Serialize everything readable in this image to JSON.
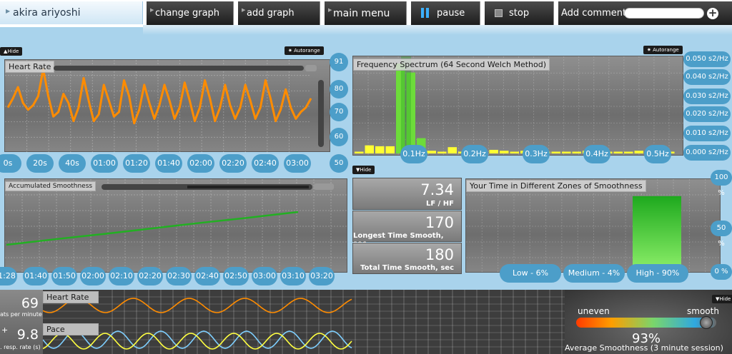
{
  "user": {
    "name": "akira ariyoshi"
  },
  "toolbar": {
    "change_graph": "change graph",
    "add_graph": "add graph",
    "main_menu": "main menu",
    "pause": "pause",
    "stop": "stop",
    "add_comment": "Add comment:"
  },
  "comment": {
    "value": ""
  },
  "heart_rate_panel": {
    "title": "Heart Rate",
    "hide": "Hide",
    "autorange": "Autorange",
    "y_ticks": [
      "91",
      "80",
      "70",
      "60",
      "50"
    ],
    "x_ticks": [
      "0s",
      "20s",
      "40s",
      "01:00",
      "01:20",
      "01:40",
      "02:00",
      "02:20",
      "02:40",
      "03:00"
    ]
  },
  "spectrum_panel": {
    "title": "Frequency Spectrum (64 Second Welch Method)",
    "autorange": "Autorange",
    "hide": "Hide",
    "y_ticks": [
      "0.050 s2/Hz",
      "0.040 s2/Hz",
      "0.030 s2/Hz",
      "0.020 s2/Hz",
      "0.010 s2/Hz",
      "0.000 s2/Hz"
    ],
    "x_ticks": [
      "0.1Hz",
      "0.2Hz",
      "0.3Hz",
      "0.4Hz",
      "0.5Hz"
    ]
  },
  "smoothness_panel": {
    "title": "Accumulated Smoothness",
    "x_ticks": [
      "01:28",
      "01:40",
      "01:50",
      "02:00",
      "02:10",
      "02:20",
      "02:30",
      "02:40",
      "02:50",
      "03:00",
      "03:10",
      "03:20"
    ]
  },
  "stats": {
    "lf_hf_value": "7.34",
    "lf_hf_label": "LF / HF",
    "longest_value": "170",
    "longest_label": "Longest Time Smooth, sec",
    "total_value": "180",
    "total_label": "Total Time Smooth, sec"
  },
  "zones_panel": {
    "title": "Your Time in Different Zones of Smoothness",
    "y_ticks": [
      "100 %",
      "50 %",
      "0 %"
    ],
    "zones": [
      {
        "label": "Low - 6%",
        "value": 6
      },
      {
        "label": "Medium - 4%",
        "value": 4
      },
      {
        "label": "High - 90%",
        "value": 90
      }
    ]
  },
  "bottom": {
    "hr_value": "69",
    "hr_unit": "ats per minute",
    "resp_value": "9.8",
    "resp_unit": ". resp. rate (s)",
    "plus": "+",
    "hr_label": "Heart Rate",
    "pace_label": "Pace",
    "uneven": "uneven",
    "smooth": "smooth",
    "avg_pct": "93%",
    "avg_pct_value": 93,
    "avg_label": "Average Smoothness (3 minute session)",
    "hide": "Hide"
  },
  "colors": {
    "accent": "#4c9ec9",
    "hr_line": "#ff8c00",
    "smooth_line": "#22b022",
    "pace_line": "#7ecfff"
  },
  "chart_data": [
    {
      "type": "line",
      "title": "Heart Rate",
      "x_ticks": [
        "0s",
        "20s",
        "40s",
        "01:00",
        "01:20",
        "01:40",
        "02:00",
        "02:20",
        "02:40",
        "03:00"
      ],
      "ylim": [
        50,
        91
      ],
      "values": [
        70,
        74,
        79,
        72,
        69,
        71,
        75,
        87,
        75,
        66,
        68,
        76,
        72,
        64,
        70,
        83,
        73,
        64,
        67,
        80,
        73,
        66,
        68,
        82,
        75,
        63,
        69,
        80,
        72,
        65,
        71,
        80,
        73,
        65,
        70,
        81,
        73,
        64,
        70,
        82,
        74,
        64,
        70,
        80,
        71,
        65,
        70,
        80,
        73,
        65,
        70,
        82,
        74,
        64,
        69,
        78,
        70,
        65,
        68,
        70,
        74
      ]
    },
    {
      "type": "bar",
      "title": "Frequency Spectrum (64 Second Welch Method)",
      "x_ticks": [
        "0.1Hz",
        "0.2Hz",
        "0.3Hz",
        "0.4Hz",
        "0.5Hz"
      ],
      "ylim": [
        0,
        0.05
      ],
      "values": [
        0.001,
        0.0045,
        0.004,
        0.004,
        0.05,
        0.045,
        0.0085,
        0.0015,
        0.001,
        0.0035,
        0.001,
        0.001,
        0.001,
        0.002,
        0.0015,
        0.001,
        0.0015,
        0.002,
        0.001,
        0.001,
        0.001,
        0.001,
        0.0015,
        0.0015,
        0.001,
        0.001,
        0.001,
        0.0015,
        0.001,
        0.001,
        0.001
      ]
    },
    {
      "type": "line",
      "title": "Accumulated Smoothness",
      "x_ticks": [
        "01:28",
        "01:40",
        "01:50",
        "02:00",
        "02:10",
        "02:20",
        "02:30",
        "02:40",
        "02:50",
        "03:00",
        "03:10",
        "03:20"
      ],
      "values": [
        0.0,
        0.17,
        0.33,
        0.5,
        0.67,
        0.83,
        1.0
      ]
    },
    {
      "type": "bar",
      "title": "Your Time in Different Zones of Smoothness",
      "categories": [
        "Low - 6%",
        "Medium - 4%",
        "High - 90%"
      ],
      "values": [
        6,
        4,
        90
      ],
      "ylim": [
        0,
        100
      ]
    }
  ]
}
